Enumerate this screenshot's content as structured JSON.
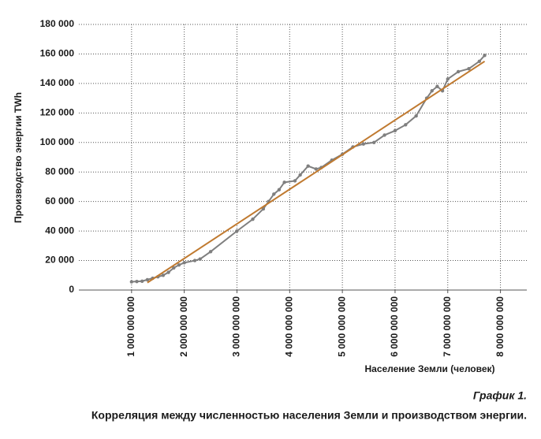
{
  "chart_data": {
    "type": "line",
    "x_label": "Население Земли (человек)",
    "y_label": "Производство энергии TWh",
    "figure_label": "График 1.",
    "caption": "Корреляция между численностью населения Земли и производством энергии.",
    "xlim": [
      0,
      8500000000
    ],
    "xticks": [
      {
        "value": 1000000000,
        "label": "1 000 000 000"
      },
      {
        "value": 2000000000,
        "label": "2 000 000 000"
      },
      {
        "value": 3000000000,
        "label": "3 000 000 000"
      },
      {
        "value": 4000000000,
        "label": "4 000 000 000"
      },
      {
        "value": 5000000000,
        "label": "5 000 000 000"
      },
      {
        "value": 6000000000,
        "label": "6 000 000 000"
      },
      {
        "value": 7000000000,
        "label": "7 000 000 000"
      },
      {
        "value": 8000000000,
        "label": "8 000 000 000"
      }
    ],
    "ylim": [
      0,
      180000
    ],
    "yticks": [
      0,
      {
        "value": 20000,
        "label": "20 000"
      },
      {
        "value": 40000,
        "label": "40 000"
      },
      {
        "value": 60000,
        "label": "60 000"
      },
      {
        "value": 80000,
        "label": "80 000"
      },
      {
        "value": 100000,
        "label": "100 000"
      },
      {
        "value": 120000,
        "label": "120 000"
      },
      {
        "value": 140000,
        "label": "140 000"
      },
      {
        "value": 160000,
        "label": "160 000"
      },
      {
        "value": 180000,
        "label": "180 000"
      }
    ],
    "grid": true,
    "series": [
      {
        "color": "#7f7f7f",
        "markers": true,
        "x": [
          1000000000,
          1100000000,
          1200000000,
          1300000000,
          1400000000,
          1500000000,
          1600000000,
          1700000000,
          1800000000,
          1900000000,
          2000000000,
          2200000000,
          2300000000,
          2500000000,
          3000000000,
          3300000000,
          3500000000,
          3600000000,
          3700000000,
          3800000000,
          3900000000,
          4100000000,
          4200000000,
          4350000000,
          4500000000,
          4600000000,
          4800000000,
          5000000000,
          5200000000,
          5400000000,
          5600000000,
          5800000000,
          6000000000,
          6200000000,
          6400000000,
          6600000000,
          6700000000,
          6800000000,
          6900000000,
          7000000000,
          7200000000,
          7400000000,
          7600000000,
          7700000000
        ],
        "values": [
          5600,
          5800,
          6000,
          7000,
          8000,
          9000,
          10000,
          12000,
          15000,
          17000,
          18500,
          20000,
          21000,
          26000,
          40000,
          48000,
          55000,
          60000,
          65000,
          68000,
          73000,
          74000,
          78000,
          84000,
          82000,
          83000,
          88000,
          92000,
          97000,
          99000,
          100000,
          105000,
          108000,
          112000,
          118000,
          130000,
          135000,
          138000,
          135000,
          143000,
          148000,
          150000,
          155000,
          159000
        ]
      },
      {
        "color": "#c07a30",
        "markers": false,
        "x": [
          1300000000,
          7700000000
        ],
        "values": [
          5000,
          155000
        ]
      }
    ]
  }
}
